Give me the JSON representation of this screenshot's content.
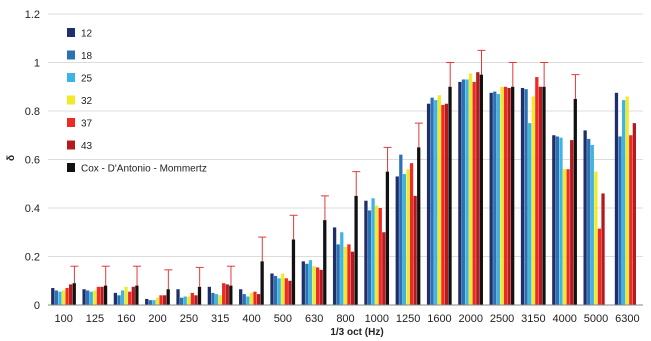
{
  "chart_data": {
    "type": "bar",
    "xlabel": "1/3 oct (Hz)",
    "ylabel": "δ",
    "ylim": [
      0,
      1.2
    ],
    "yticks": [
      "0",
      "0.2",
      "0.4",
      "0.6",
      "0.8",
      "1",
      "1.2"
    ],
    "grid": "horizontal",
    "legend_position": "top-left",
    "categories": [
      "100",
      "125",
      "160",
      "200",
      "250",
      "315",
      "400",
      "500",
      "630",
      "800",
      "1000",
      "1250",
      "1600",
      "2000",
      "2500",
      "3150",
      "4000",
      "5000",
      "6300"
    ],
    "series": [
      {
        "name": "12",
        "color": "#1f2f6b",
        "values": [
          0.07,
          0.065,
          0.05,
          0.025,
          0.065,
          0.075,
          0.065,
          0.13,
          0.18,
          0.32,
          0.43,
          0.53,
          0.83,
          0.92,
          0.875,
          0.895,
          0.7,
          0.72,
          0.875
        ]
      },
      {
        "name": "18",
        "color": "#2a72b4",
        "values": [
          0.06,
          0.06,
          0.04,
          0.02,
          0.03,
          0.05,
          0.045,
          0.12,
          0.17,
          0.25,
          0.39,
          0.62,
          0.855,
          0.93,
          0.88,
          0.89,
          0.695,
          0.685,
          0.695
        ]
      },
      {
        "name": "25",
        "color": "#3fb4e3",
        "values": [
          0.055,
          0.055,
          0.06,
          0.02,
          0.035,
          0.045,
          0.035,
          0.11,
          0.185,
          0.3,
          0.44,
          0.54,
          0.845,
          0.93,
          0.87,
          0.75,
          0.69,
          0.66,
          0.845
        ]
      },
      {
        "name": "32",
        "color": "#f1ea2a",
        "values": [
          0.06,
          0.06,
          0.075,
          0.03,
          0.035,
          0.04,
          0.05,
          0.13,
          0.16,
          0.24,
          0.41,
          0.56,
          0.865,
          0.955,
          0.9,
          0.86,
          0.56,
          0.55,
          0.86
        ]
      },
      {
        "name": "37",
        "color": "#ee2a24",
        "values": [
          0.07,
          0.075,
          0.055,
          0.04,
          0.05,
          0.09,
          0.055,
          0.11,
          0.155,
          0.25,
          0.4,
          0.585,
          0.825,
          0.92,
          0.9,
          0.94,
          0.56,
          0.315,
          0.7
        ]
      },
      {
        "name": "43",
        "color": "#b51a1f",
        "values": [
          0.085,
          0.075,
          0.075,
          0.04,
          0.04,
          0.085,
          0.045,
          0.1,
          0.145,
          0.22,
          0.3,
          0.45,
          0.83,
          0.96,
          0.895,
          0.9,
          0.68,
          0.46,
          0.75
        ]
      },
      {
        "name": "Cox - D'Antonio - Mommertz",
        "color": "#111111",
        "values": [
          0.09,
          0.08,
          0.08,
          0.065,
          0.075,
          0.08,
          0.18,
          0.27,
          0.35,
          0.45,
          0.55,
          0.65,
          0.9,
          0.95,
          0.9,
          0.9,
          0.85,
          null,
          null
        ],
        "error_plus": [
          0.07,
          0.08,
          0.08,
          0.08,
          0.08,
          0.08,
          0.1,
          0.1,
          0.1,
          0.1,
          0.1,
          0.1,
          0.1,
          0.1,
          0.1,
          0.1,
          0.1,
          null,
          null
        ],
        "error_color": "#e23a3a"
      }
    ]
  }
}
